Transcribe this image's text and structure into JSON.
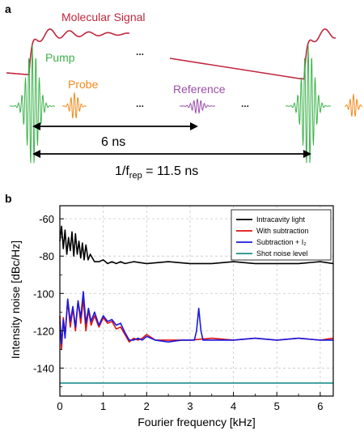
{
  "panel_a": {
    "label": "a",
    "molecular_signal": "Molecular Signal",
    "pump": "Pump",
    "probe": "Probe",
    "reference": "Reference",
    "ellipsis": "...",
    "delay_6": "6 ns",
    "rep_prefix": "1/f",
    "rep_sub": "rep",
    "rep_suffix": " = 11.5 ns",
    "colors": {
      "signal": "#c0263d",
      "pump": "#3cb24a",
      "probe": "#f28a1c",
      "reference": "#9b4fa8"
    }
  },
  "panel_b": {
    "label": "b"
  },
  "chart_data": {
    "type": "line",
    "xlabel": "Fourier frequency [kHz]",
    "ylabel": "Intensity noise [dBc/Hz]",
    "xlim": [
      0,
      6.3
    ],
    "ylim": [
      -155,
      -53
    ],
    "xticks": [
      0,
      1,
      2,
      3,
      4,
      5,
      6
    ],
    "yticks": [
      -60,
      -80,
      -100,
      -120,
      -140
    ],
    "grid": true,
    "legend_position": "top-right",
    "series": [
      {
        "name": "Intracavity light",
        "color": "#000000",
        "x": [
          0,
          0.04,
          0.08,
          0.12,
          0.16,
          0.2,
          0.24,
          0.28,
          0.32,
          0.36,
          0.4,
          0.44,
          0.48,
          0.52,
          0.56,
          0.6,
          0.65,
          0.7,
          0.75,
          0.8,
          0.9,
          1.0,
          1.1,
          1.2,
          1.3,
          1.4,
          1.5,
          1.7,
          2.0,
          2.5,
          3.0,
          3.5,
          4.0,
          4.5,
          5.0,
          5.5,
          6.0,
          6.3
        ],
        "y": [
          -72,
          -64,
          -76,
          -66,
          -79,
          -70,
          -77,
          -67,
          -80,
          -68,
          -79,
          -72,
          -81,
          -73,
          -82,
          -74,
          -82,
          -79,
          -81,
          -83,
          -83,
          -82,
          -84,
          -83,
          -84,
          -83,
          -84,
          -83,
          -84,
          -83,
          -84,
          -84,
          -83,
          -84,
          -84,
          -84,
          -83,
          -84
        ]
      },
      {
        "name": "With subtraction",
        "color": "#e01010",
        "x": [
          0,
          0.04,
          0.08,
          0.12,
          0.18,
          0.24,
          0.3,
          0.36,
          0.42,
          0.48,
          0.54,
          0.6,
          0.66,
          0.72,
          0.8,
          0.9,
          1.0,
          1.1,
          1.2,
          1.3,
          1.4,
          1.5,
          1.6,
          1.7,
          1.8,
          1.9,
          2.0,
          2.2,
          2.5,
          3.0,
          3.5,
          4.0,
          4.5,
          5.0,
          5.5,
          6.0,
          6.3
        ],
        "y": [
          -112,
          -130,
          -113,
          -122,
          -104,
          -118,
          -108,
          -120,
          -104,
          -116,
          -103,
          -120,
          -109,
          -117,
          -112,
          -118,
          -113,
          -116,
          -115,
          -119,
          -118,
          -122,
          -126,
          -124,
          -125,
          -124,
          -122,
          -125,
          -125,
          -125,
          -124,
          -125,
          -124,
          -125,
          -124,
          -125,
          -124
        ]
      },
      {
        "name": "Subtraction + I₂",
        "color": "#1a1ae0",
        "x": [
          0,
          0.04,
          0.08,
          0.12,
          0.18,
          0.24,
          0.3,
          0.36,
          0.42,
          0.48,
          0.54,
          0.6,
          0.66,
          0.72,
          0.8,
          0.9,
          1.0,
          1.1,
          1.2,
          1.3,
          1.4,
          1.5,
          1.6,
          1.7,
          1.8,
          1.9,
          2.0,
          2.2,
          2.5,
          2.8,
          3.0,
          3.1,
          3.15,
          3.2,
          3.25,
          3.3,
          3.5,
          4.0,
          4.5,
          5.0,
          5.5,
          6.0,
          6.3
        ],
        "y": [
          -115,
          -127,
          -114,
          -124,
          -103,
          -115,
          -107,
          -118,
          -104,
          -113,
          -99,
          -116,
          -108,
          -115,
          -110,
          -117,
          -112,
          -115,
          -114,
          -117,
          -116,
          -121,
          -125,
          -125,
          -124,
          -125,
          -123,
          -125,
          -126,
          -125,
          -125,
          -125,
          -120,
          -108,
          -120,
          -125,
          -125,
          -125,
          -124,
          -125,
          -124,
          -125,
          -125
        ]
      },
      {
        "name": "Shot noise level",
        "color": "#1a8f8a",
        "x": [
          0,
          6.3
        ],
        "y": [
          -148,
          -148
        ]
      }
    ]
  }
}
